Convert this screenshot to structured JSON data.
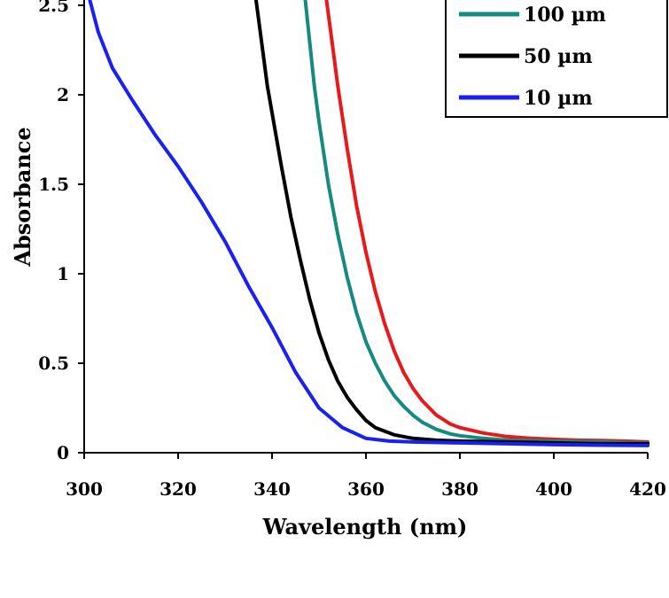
{
  "chart_data": {
    "type": "line",
    "xlabel": "Wavelength (nm)",
    "ylabel": "Absorbance",
    "xlim": [
      300,
      420
    ],
    "ylim": [
      0,
      2.5
    ],
    "x_ticks": [
      300,
      320,
      340,
      360,
      380,
      400,
      420
    ],
    "y_ticks": [
      "0",
      "0.5",
      "1",
      "1.5",
      "2",
      "2.5"
    ],
    "legend_position": "top-right",
    "grid": false,
    "series": [
      {
        "name": "",
        "color": "#e8191b",
        "x": [
          351.5,
          352.5,
          354,
          356,
          358,
          360,
          362,
          364,
          366,
          368,
          370,
          372,
          375,
          378,
          380,
          385,
          390,
          395,
          400,
          405,
          410,
          415,
          420
        ],
        "y": [
          2.55,
          2.35,
          2.05,
          1.7,
          1.38,
          1.12,
          0.9,
          0.72,
          0.57,
          0.45,
          0.36,
          0.29,
          0.21,
          0.16,
          0.14,
          0.11,
          0.09,
          0.08,
          0.075,
          0.07,
          0.068,
          0.065,
          0.06
        ]
      },
      {
        "name": "100 µm",
        "color": "#158a80",
        "x": [
          347,
          348,
          349,
          350,
          352,
          354,
          356,
          358,
          360,
          362,
          364,
          366,
          368,
          370,
          372,
          375,
          378,
          380,
          385,
          390,
          400,
          410,
          420
        ],
        "y": [
          2.55,
          2.3,
          2.05,
          1.85,
          1.5,
          1.22,
          0.98,
          0.78,
          0.62,
          0.5,
          0.4,
          0.32,
          0.26,
          0.21,
          0.17,
          0.13,
          0.105,
          0.095,
          0.08,
          0.07,
          0.065,
          0.06,
          0.055
        ]
      },
      {
        "name": "50 µm",
        "color": "#000000",
        "x": [
          336.5,
          337,
          338,
          339,
          340,
          342,
          344,
          346,
          348,
          350,
          352,
          354,
          356,
          358,
          360,
          362,
          364,
          366,
          370,
          375,
          380,
          390,
          400,
          410,
          420
        ],
        "y": [
          2.55,
          2.45,
          2.25,
          2.05,
          1.9,
          1.6,
          1.32,
          1.08,
          0.86,
          0.67,
          0.52,
          0.4,
          0.31,
          0.24,
          0.18,
          0.14,
          0.12,
          0.1,
          0.08,
          0.07,
          0.065,
          0.06,
          0.055,
          0.05,
          0.05
        ]
      },
      {
        "name": "10 µm",
        "color": "#1a1ff2",
        "x": [
          301,
          303,
          306,
          310,
          315,
          320,
          325,
          330,
          335,
          340,
          345,
          350,
          355,
          360,
          365,
          370,
          380,
          390,
          400,
          410,
          420
        ],
        "y": [
          2.55,
          2.35,
          2.15,
          1.98,
          1.78,
          1.6,
          1.4,
          1.18,
          0.93,
          0.7,
          0.45,
          0.25,
          0.14,
          0.08,
          0.065,
          0.06,
          0.055,
          0.05,
          0.045,
          0.042,
          0.04
        ]
      }
    ]
  }
}
